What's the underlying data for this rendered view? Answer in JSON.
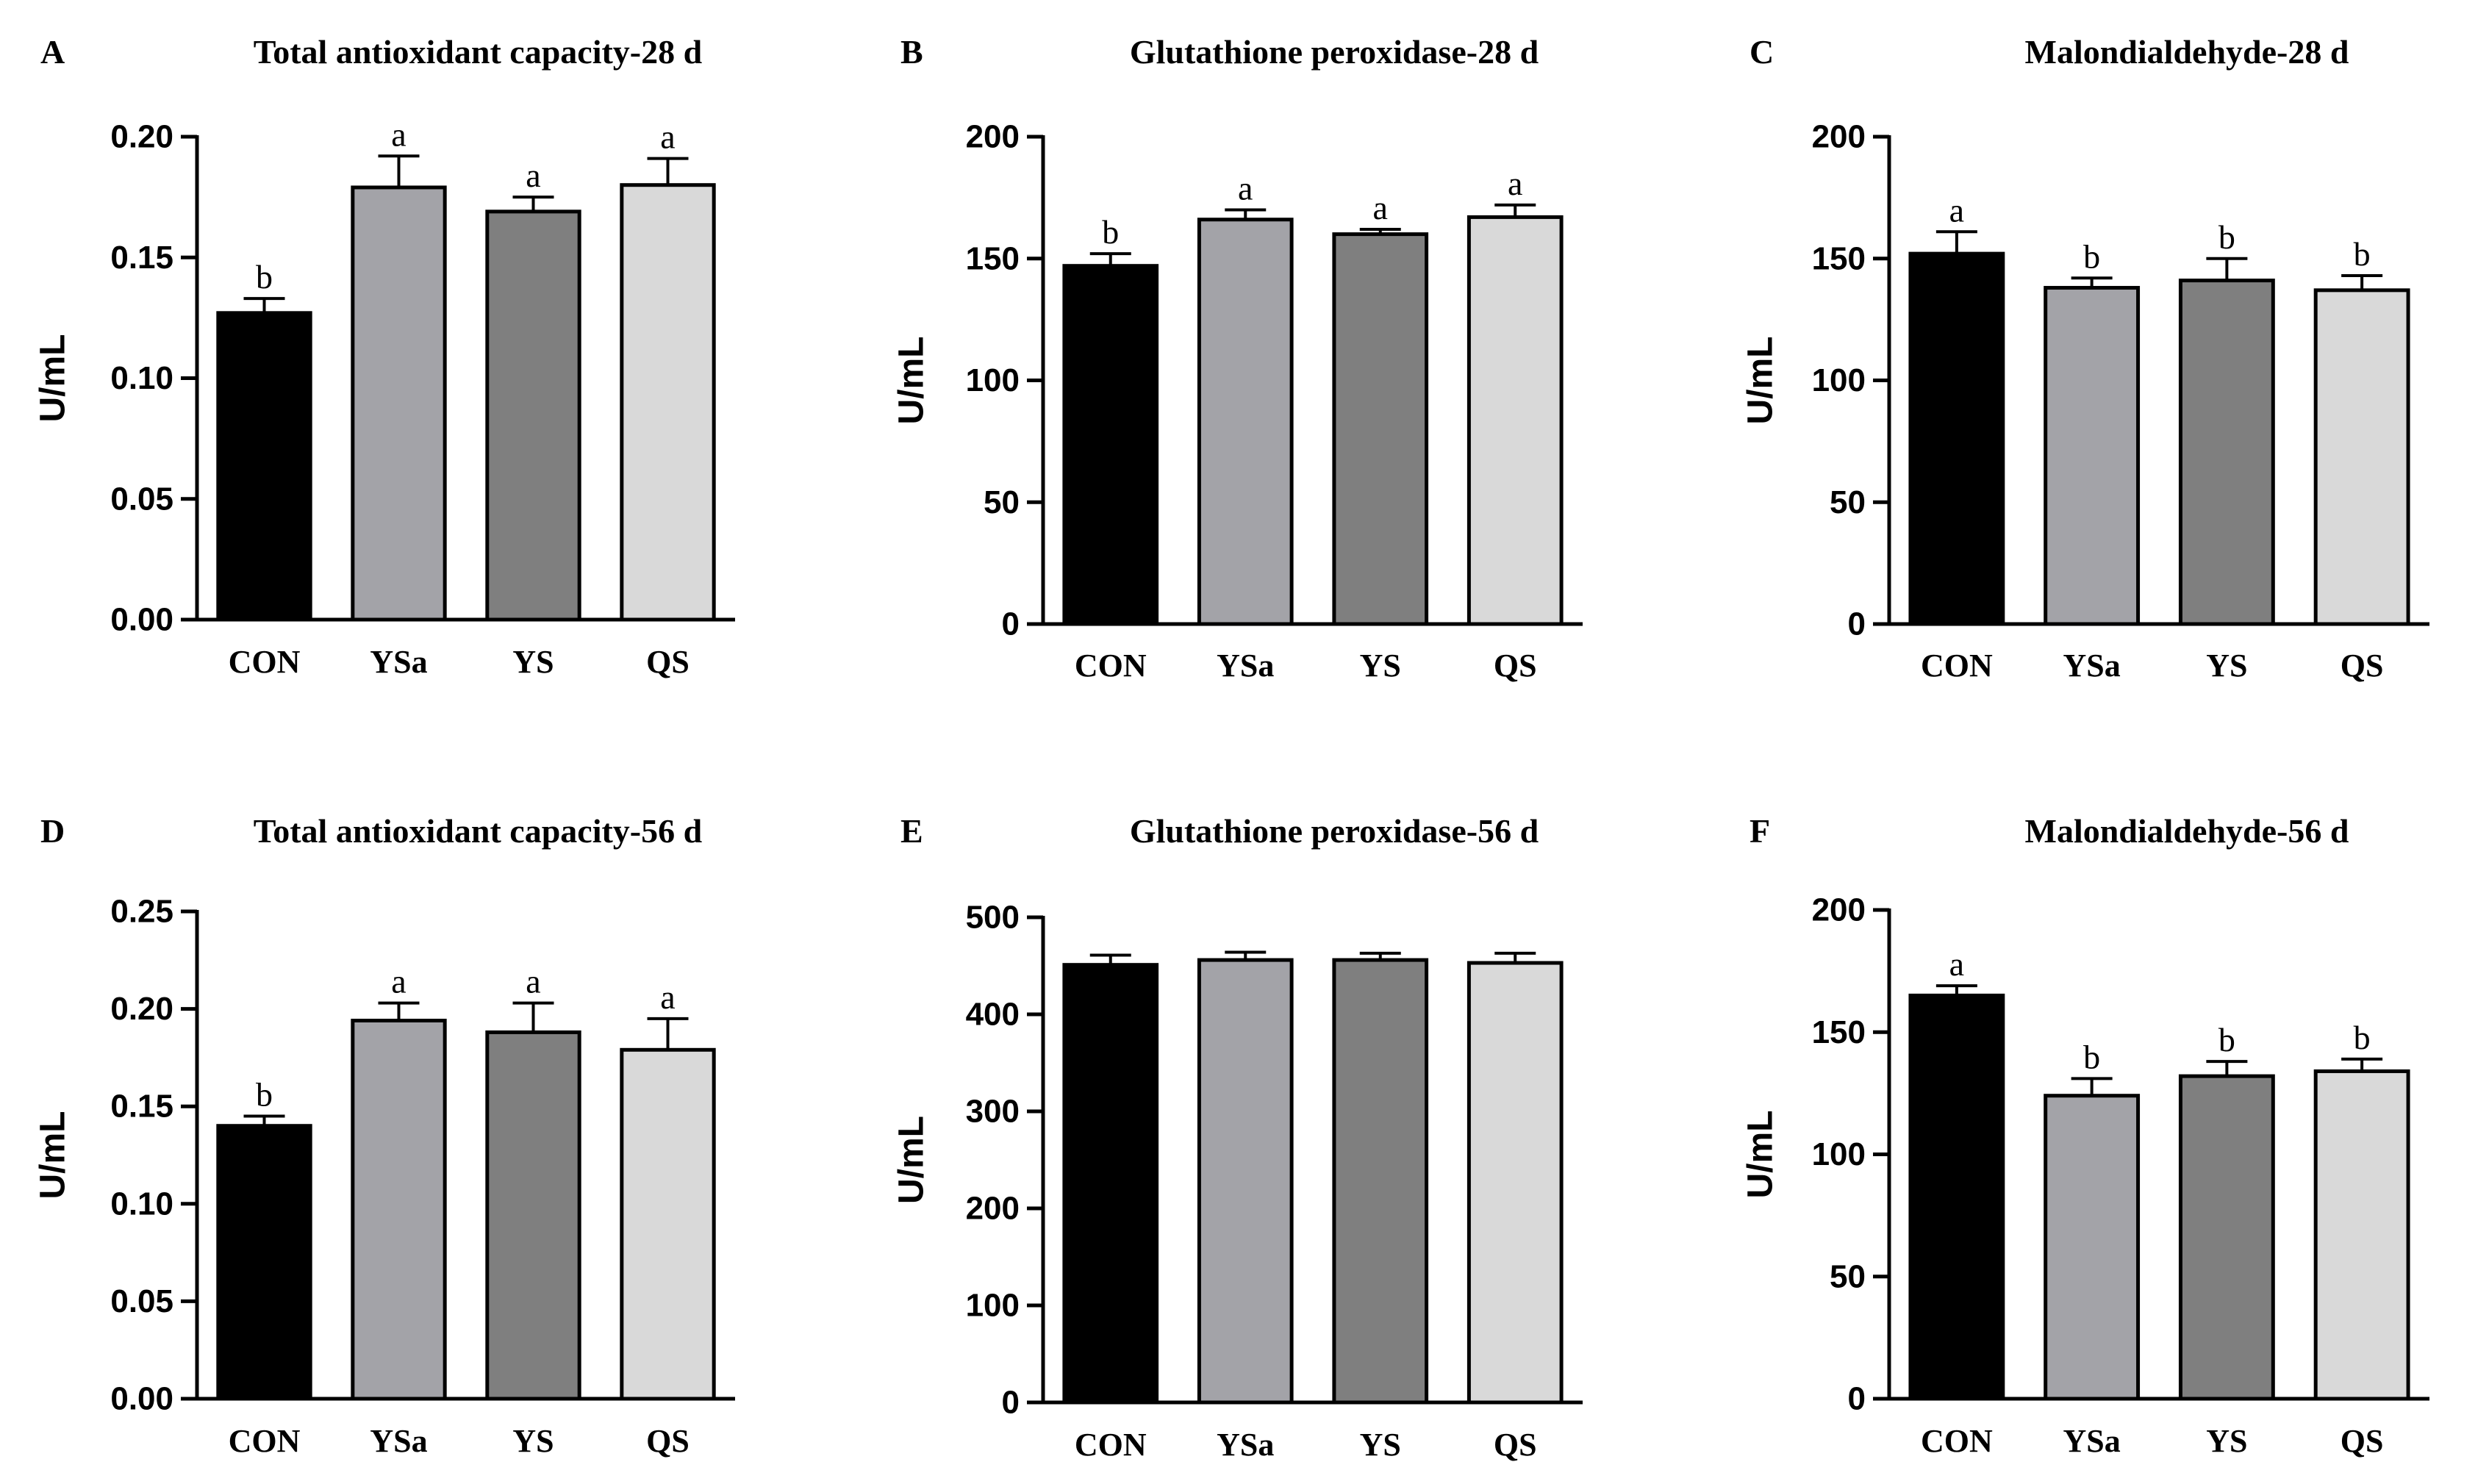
{
  "group_colors": {
    "CON": "#000000",
    "YSa": "#a3a3a8",
    "YS": "#7f7f7f",
    "QS": "#d9d9d9"
  },
  "chart_data": [
    {
      "panel": "A",
      "type": "bar",
      "title": "Total antioxidant capacity-28 d",
      "xlabel": "",
      "ylabel": "U/mL",
      "categories": [
        "CON",
        "YSa",
        "YS",
        "QS"
      ],
      "values": [
        0.127,
        0.179,
        0.169,
        0.18
      ],
      "errors": [
        0.006,
        0.013,
        0.006,
        0.011
      ],
      "significance": [
        "b",
        "a",
        "a",
        "a"
      ],
      "ylim": [
        0,
        0.2
      ],
      "yticks": [
        0,
        0.05,
        0.1,
        0.15,
        0.2
      ],
      "ytick_labels": [
        "0.00",
        "0.05",
        "0.10",
        "0.15",
        "0.20"
      ]
    },
    {
      "panel": "B",
      "type": "bar",
      "title": "Glutathione peroxidase-28 d",
      "xlabel": "",
      "ylabel": "U/mL",
      "categories": [
        "CON",
        "YSa",
        "YS",
        "QS"
      ],
      "values": [
        147,
        166,
        160,
        167
      ],
      "errors": [
        5,
        4,
        2,
        5
      ],
      "significance": [
        "b",
        "a",
        "a",
        "a"
      ],
      "ylim": [
        0,
        200
      ],
      "yticks": [
        0,
        50,
        100,
        150,
        200
      ],
      "ytick_labels": [
        "0",
        "50",
        "100",
        "150",
        "200"
      ]
    },
    {
      "panel": "C",
      "type": "bar",
      "title": "Malondialdehyde-28 d",
      "xlabel": "",
      "ylabel": "U/mL",
      "categories": [
        "CON",
        "YSa",
        "YS",
        "QS"
      ],
      "values": [
        152,
        138,
        141,
        137
      ],
      "errors": [
        9,
        4,
        9,
        6
      ],
      "significance": [
        "a",
        "b",
        "b",
        "b"
      ],
      "ylim": [
        0,
        200
      ],
      "yticks": [
        0,
        50,
        100,
        150,
        200
      ],
      "ytick_labels": [
        "0",
        "50",
        "100",
        "150",
        "200"
      ]
    },
    {
      "panel": "D",
      "type": "bar",
      "title": "Total antioxidant capacity-56 d",
      "xlabel": "",
      "ylabel": "U/mL",
      "categories": [
        "CON",
        "YSa",
        "YS",
        "QS"
      ],
      "values": [
        0.14,
        0.194,
        0.188,
        0.179
      ],
      "errors": [
        0.005,
        0.009,
        0.015,
        0.016
      ],
      "significance": [
        "b",
        "a",
        "a",
        "a"
      ],
      "ylim": [
        0,
        0.25
      ],
      "yticks": [
        0,
        0.05,
        0.1,
        0.15,
        0.2,
        0.25
      ],
      "ytick_labels": [
        "0.00",
        "0.05",
        "0.10",
        "0.15",
        "0.20",
        "0.25"
      ]
    },
    {
      "panel": "E",
      "type": "bar",
      "title": "Glutathione peroxidase-56 d",
      "xlabel": "",
      "ylabel": "U/mL",
      "categories": [
        "CON",
        "YSa",
        "YS",
        "QS"
      ],
      "values": [
        451,
        456,
        456,
        453
      ],
      "errors": [
        10,
        8,
        7,
        10
      ],
      "significance": [
        "",
        "",
        "",
        ""
      ],
      "ylim": [
        0,
        500
      ],
      "yticks": [
        0,
        100,
        200,
        300,
        400,
        500
      ],
      "ytick_labels": [
        "0",
        "100",
        "200",
        "300",
        "400",
        "500"
      ]
    },
    {
      "panel": "F",
      "type": "bar",
      "title": "Malondialdehyde-56 d",
      "xlabel": "",
      "ylabel": "U/mL",
      "categories": [
        "CON",
        "YSa",
        "YS",
        "QS"
      ],
      "values": [
        165,
        124,
        132,
        134
      ],
      "errors": [
        4,
        7,
        6,
        5
      ],
      "significance": [
        "a",
        "b",
        "b",
        "b"
      ],
      "ylim": [
        0,
        200
      ],
      "yticks": [
        0,
        50,
        100,
        150,
        200
      ],
      "ytick_labels": [
        "0",
        "50",
        "100",
        "150",
        "200"
      ]
    }
  ]
}
